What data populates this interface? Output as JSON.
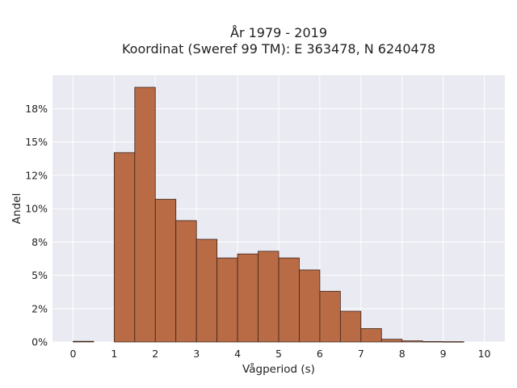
{
  "chart_data": {
    "type": "bar",
    "title": "År 1979 - 2019",
    "subtitle": "Koordinat (Sweref 99 TM): E 363478, N 6240478",
    "xlabel": "Vågperiod (s)",
    "ylabel": "Andel",
    "bin_width": 0.5,
    "bins": [
      {
        "start": 0.0,
        "value": 0.0005
      },
      {
        "start": 0.5,
        "value": 0.0
      },
      {
        "start": 1.0,
        "value": 0.142
      },
      {
        "start": 1.5,
        "value": 0.191
      },
      {
        "start": 2.0,
        "value": 0.107
      },
      {
        "start": 2.5,
        "value": 0.091
      },
      {
        "start": 3.0,
        "value": 0.077
      },
      {
        "start": 3.5,
        "value": 0.063
      },
      {
        "start": 4.0,
        "value": 0.066
      },
      {
        "start": 4.5,
        "value": 0.068
      },
      {
        "start": 5.0,
        "value": 0.063
      },
      {
        "start": 5.5,
        "value": 0.054
      },
      {
        "start": 6.0,
        "value": 0.038
      },
      {
        "start": 6.5,
        "value": 0.023
      },
      {
        "start": 7.0,
        "value": 0.01
      },
      {
        "start": 7.5,
        "value": 0.002
      },
      {
        "start": 8.0,
        "value": 0.0008
      },
      {
        "start": 8.5,
        "value": 0.0003
      },
      {
        "start": 9.0,
        "value": 0.0002
      },
      {
        "start": 9.5,
        "value": 0.0
      }
    ],
    "xlim": [
      -0.5,
      10.5
    ],
    "ylim": [
      0,
      0.2
    ],
    "xticks": [
      0,
      1,
      2,
      3,
      4,
      5,
      6,
      7,
      8,
      9,
      10
    ],
    "xtick_labels": [
      "0",
      "1",
      "2",
      "3",
      "4",
      "5",
      "6",
      "7",
      "8",
      "9",
      "10"
    ],
    "yticks": [
      0,
      0.025,
      0.05,
      0.075,
      0.1,
      0.125,
      0.15,
      0.175
    ],
    "ytick_labels": [
      "0%",
      "2%",
      "5%",
      "8%",
      "10%",
      "12%",
      "15%",
      "18%"
    ],
    "grid": true,
    "colors": {
      "bar_fill": "#b86b45",
      "bar_edge": "#3d2418",
      "plot_background": "#eaeaf2",
      "grid": "#ffffff"
    }
  }
}
